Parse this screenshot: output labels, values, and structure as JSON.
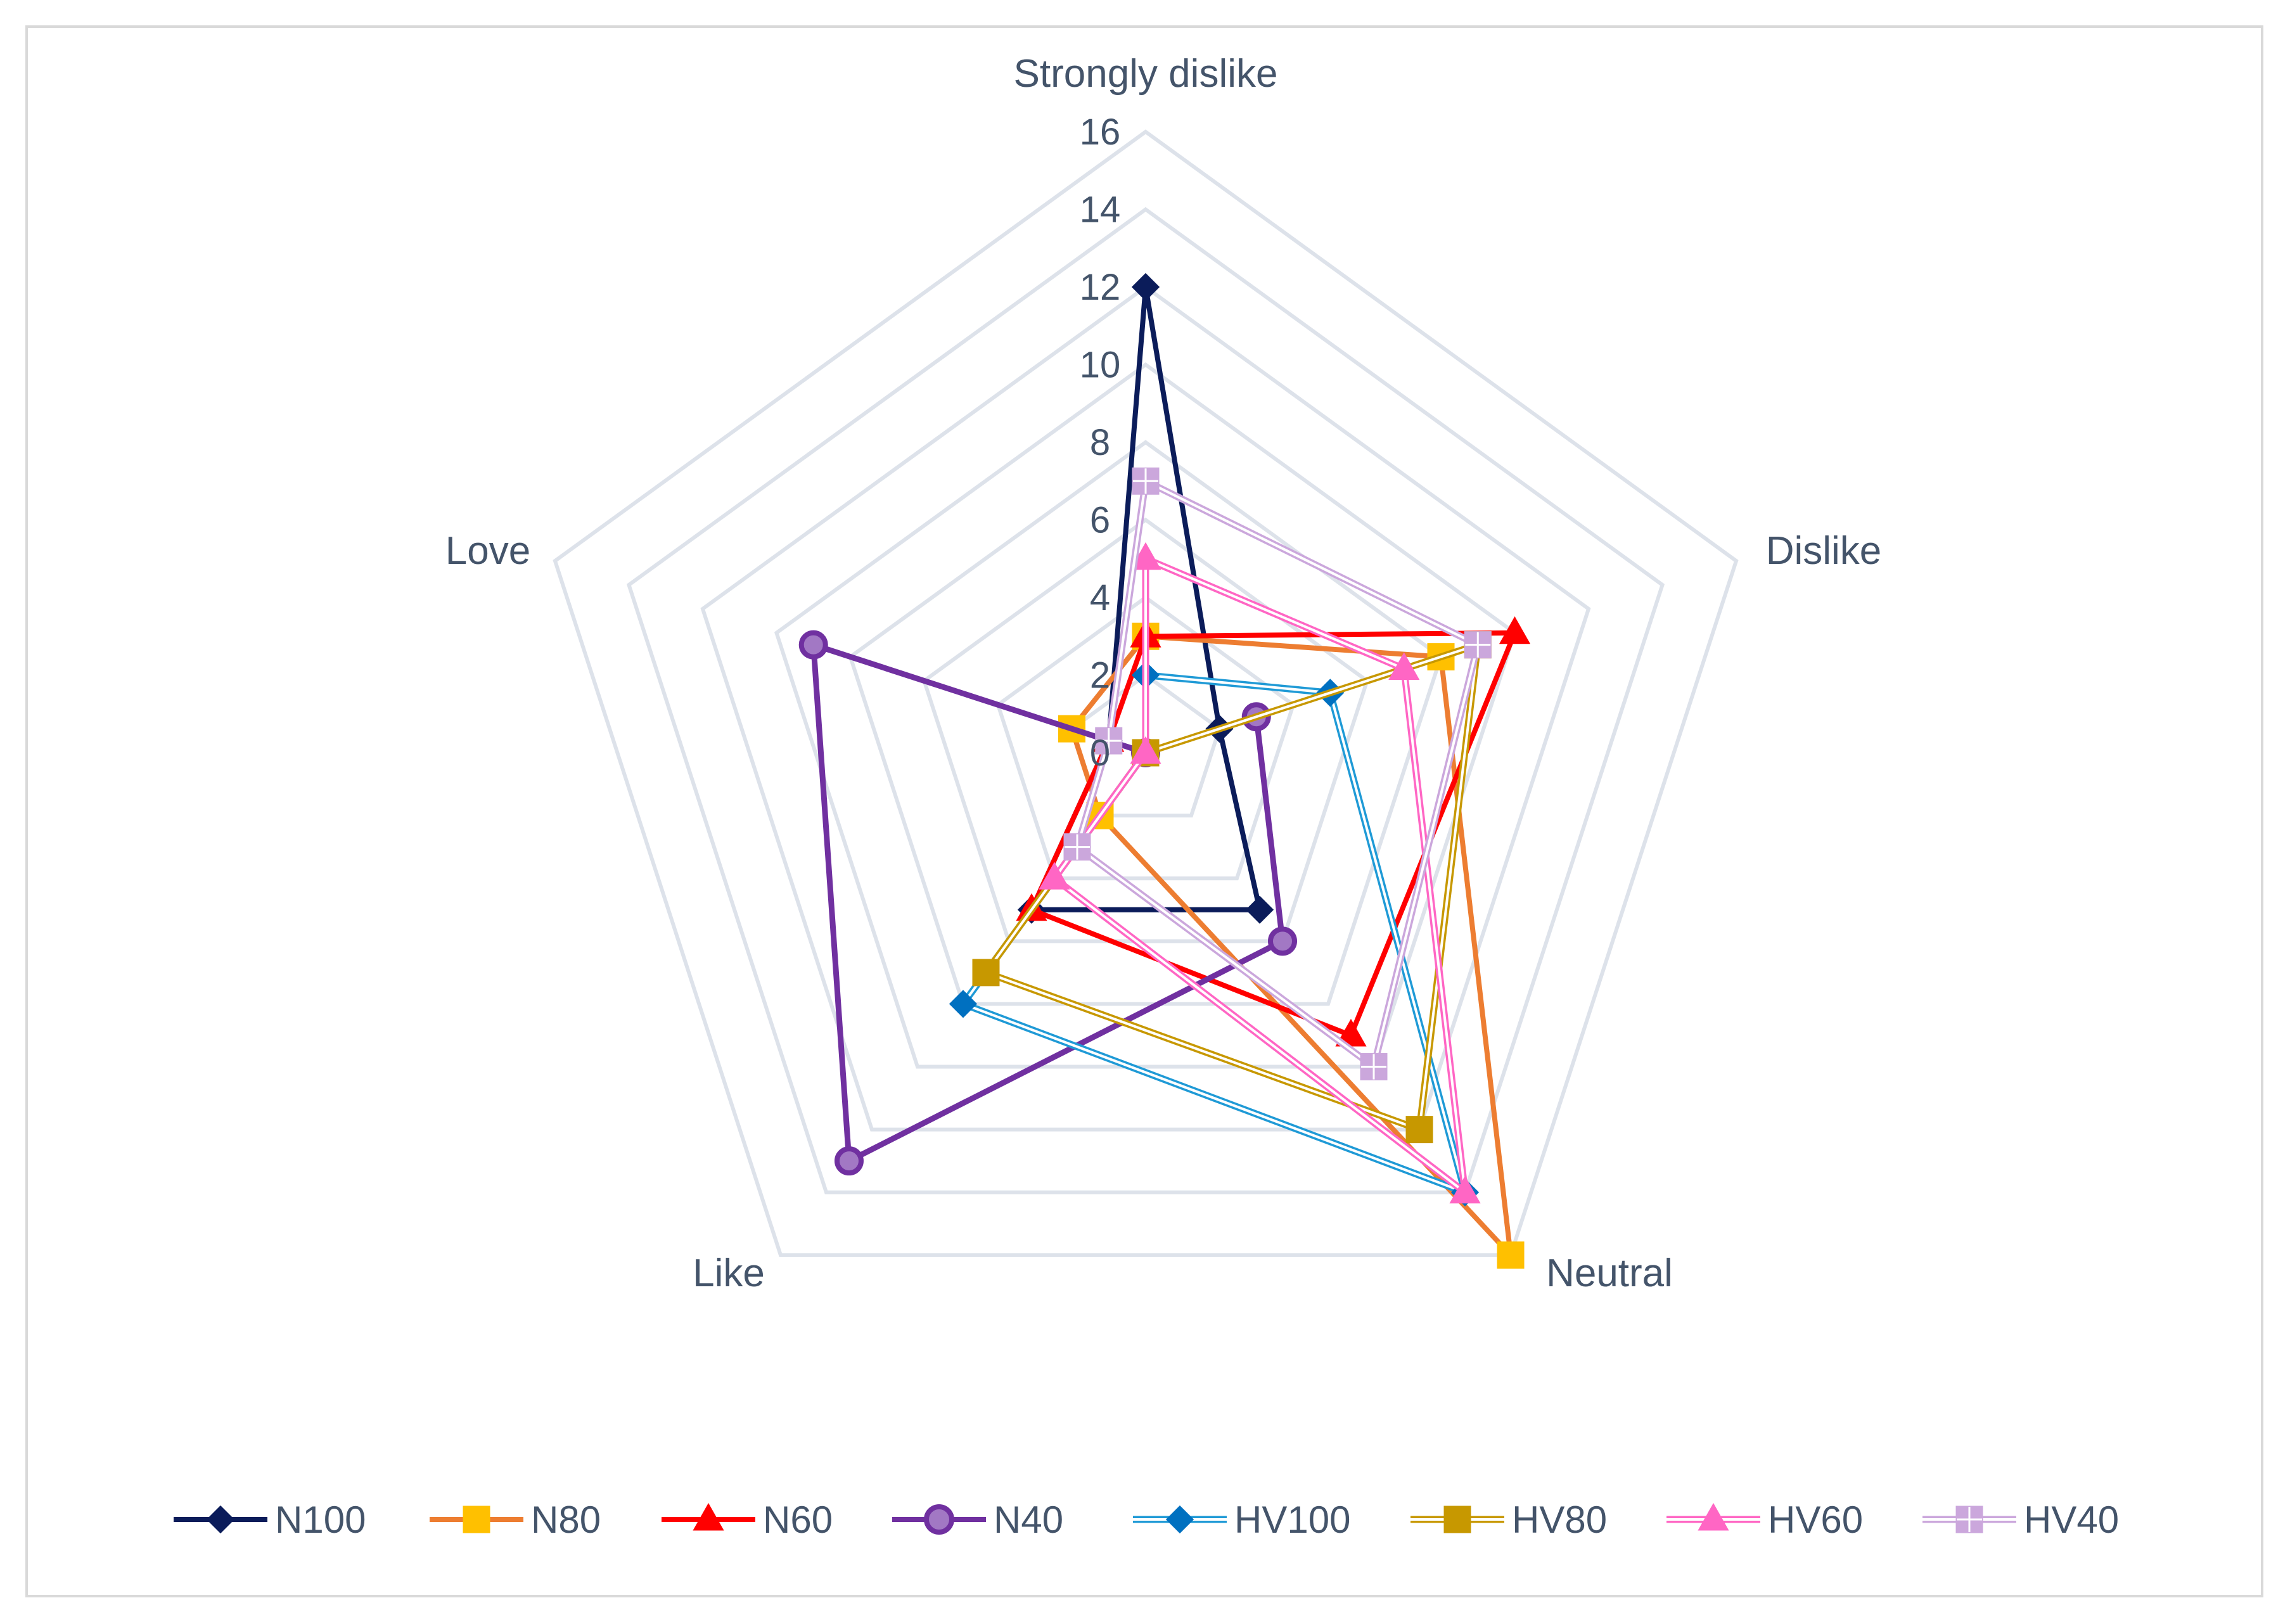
{
  "chart_data": {
    "type": "radar",
    "categories": [
      "Strongly dislike",
      "Dislike",
      "Neutral",
      "Like",
      "Love"
    ],
    "rlim": [
      0,
      16
    ],
    "ticks": [
      "0",
      "2",
      "4",
      "6",
      "8",
      "10",
      "12",
      "14",
      "16"
    ],
    "grid": true,
    "legend_position": "bottom",
    "series": [
      {
        "name": "N100",
        "values": [
          12,
          2,
          5,
          5,
          1
        ],
        "color": "#0b1c5a",
        "marker": "diamond",
        "style": "solid"
      },
      {
        "name": "N80",
        "values": [
          3,
          8,
          16,
          2,
          2
        ],
        "color": "#ed7d31",
        "marker_fill": "#ffc000",
        "marker": "square",
        "style": "solid"
      },
      {
        "name": "N60",
        "values": [
          3,
          10,
          9,
          5,
          1
        ],
        "color": "#ff0000",
        "marker": "triangle",
        "style": "solid"
      },
      {
        "name": "N40",
        "values": [
          0,
          3,
          6,
          13,
          9
        ],
        "color": "#7030a0",
        "marker": "circle",
        "style": "solid"
      },
      {
        "name": "HV100",
        "values": [
          2,
          5,
          14,
          8,
          0
        ],
        "color": "#1f9ad6",
        "marker_fill": "#0070c0",
        "marker": "diamond",
        "style": "double"
      },
      {
        "name": "HV80",
        "values": [
          0,
          9,
          12,
          7,
          0
        ],
        "color": "#c79800",
        "marker": "square",
        "style": "double"
      },
      {
        "name": "HV60",
        "values": [
          5,
          7,
          14,
          4,
          0
        ],
        "color": "#ff66c4",
        "marker": "triangle",
        "style": "double"
      },
      {
        "name": "HV40",
        "values": [
          7,
          9,
          10,
          3,
          1
        ],
        "color": "#cba7dc",
        "marker": "square-cross",
        "style": "double"
      }
    ]
  }
}
